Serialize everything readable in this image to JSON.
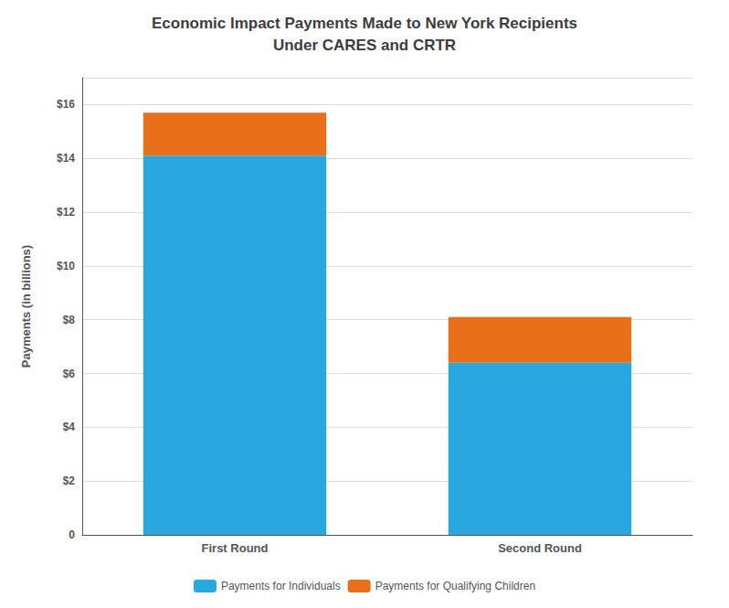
{
  "chart_data": {
    "type": "bar",
    "title": "Economic Impact Payments Made to New York Recipients",
    "subtitle": "Under CARES and CRTR",
    "categories": [
      "First Round",
      "Second Round"
    ],
    "series": [
      {
        "name": "Payments for Individuals",
        "color": "#29a8e0",
        "values": [
          14.1,
          6.4
        ]
      },
      {
        "name": "Payments for Qualifying Children",
        "color": "#e8701a",
        "values": [
          1.6,
          1.7
        ]
      }
    ],
    "stacked": true,
    "ylabel": "Payments (in billions)",
    "ylim": [
      0,
      17
    ],
    "yticks": [
      0,
      {
        "value": 2,
        "label": "$2"
      },
      {
        "value": 4,
        "label": "$4"
      },
      {
        "value": 6,
        "label": "$6"
      },
      {
        "value": 8,
        "label": "$8"
      },
      {
        "value": 10,
        "label": "$10"
      },
      {
        "value": 12,
        "label": "$12"
      },
      {
        "value": 14,
        "label": "$14"
      },
      {
        "value": 16,
        "label": "$16"
      }
    ],
    "grid": true,
    "legend": "bottom"
  }
}
